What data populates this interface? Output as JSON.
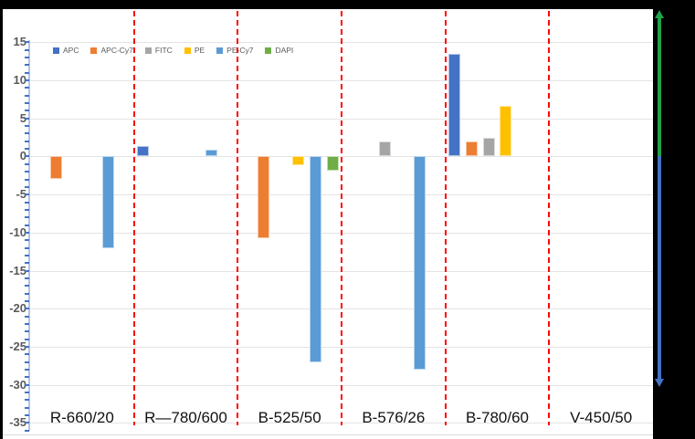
{
  "chart_data": {
    "type": "bar",
    "title": "",
    "subtitle": "",
    "categories": [
      "R-660/20",
      "R—780/600",
      "B-525/50",
      "B-576/26",
      "B-780/60",
      "V-450/50"
    ],
    "series": [
      {
        "name": "APC",
        "color": "#4472c4",
        "border": "#b4c7e7",
        "values": [
          null,
          1.4,
          null,
          null,
          13.5,
          null
        ]
      },
      {
        "name": "APC-Cy7",
        "color": "#ed7d31",
        "border": "#f7cbac",
        "values": [
          -2.9,
          null,
          -10.7,
          null,
          2.0,
          null
        ]
      },
      {
        "name": "FITC",
        "color": "#a5a5a5",
        "border": "#dbdbdb",
        "values": [
          null,
          null,
          null,
          2.0,
          2.5,
          null
        ]
      },
      {
        "name": "PE",
        "color": "#ffc000",
        "border": "#ffe699",
        "values": [
          null,
          null,
          -1.2,
          null,
          6.7,
          null
        ]
      },
      {
        "name": "PE-Cy7",
        "color": "#5b9bd5",
        "border": "#bdd7ee",
        "values": [
          -12.0,
          0.9,
          -27.0,
          -28.0,
          null,
          null
        ]
      },
      {
        "name": "DAPI",
        "color": "#70ad47",
        "border": "#c6e0b4",
        "values": [
          null,
          null,
          -1.8,
          null,
          null,
          null
        ]
      }
    ],
    "y_axis": {
      "ticks": [
        15,
        10,
        5,
        0,
        -5,
        -10,
        -15,
        -20,
        -25,
        -30,
        -35
      ],
      "max": 16,
      "min": -36.5,
      "minor_tick_step": 1,
      "axis_color": "#aec6e8",
      "tick_color": "#4472c4",
      "label_color": "#595959"
    },
    "xlabel": "",
    "ylabel": "",
    "grid": "horizontal",
    "legend_position": "inside-top-left",
    "panel_separator_color": "#fe0000",
    "annotations": {
      "up_arrow_color": "#22a14c",
      "down_arrow_color": "#4472c4"
    }
  }
}
